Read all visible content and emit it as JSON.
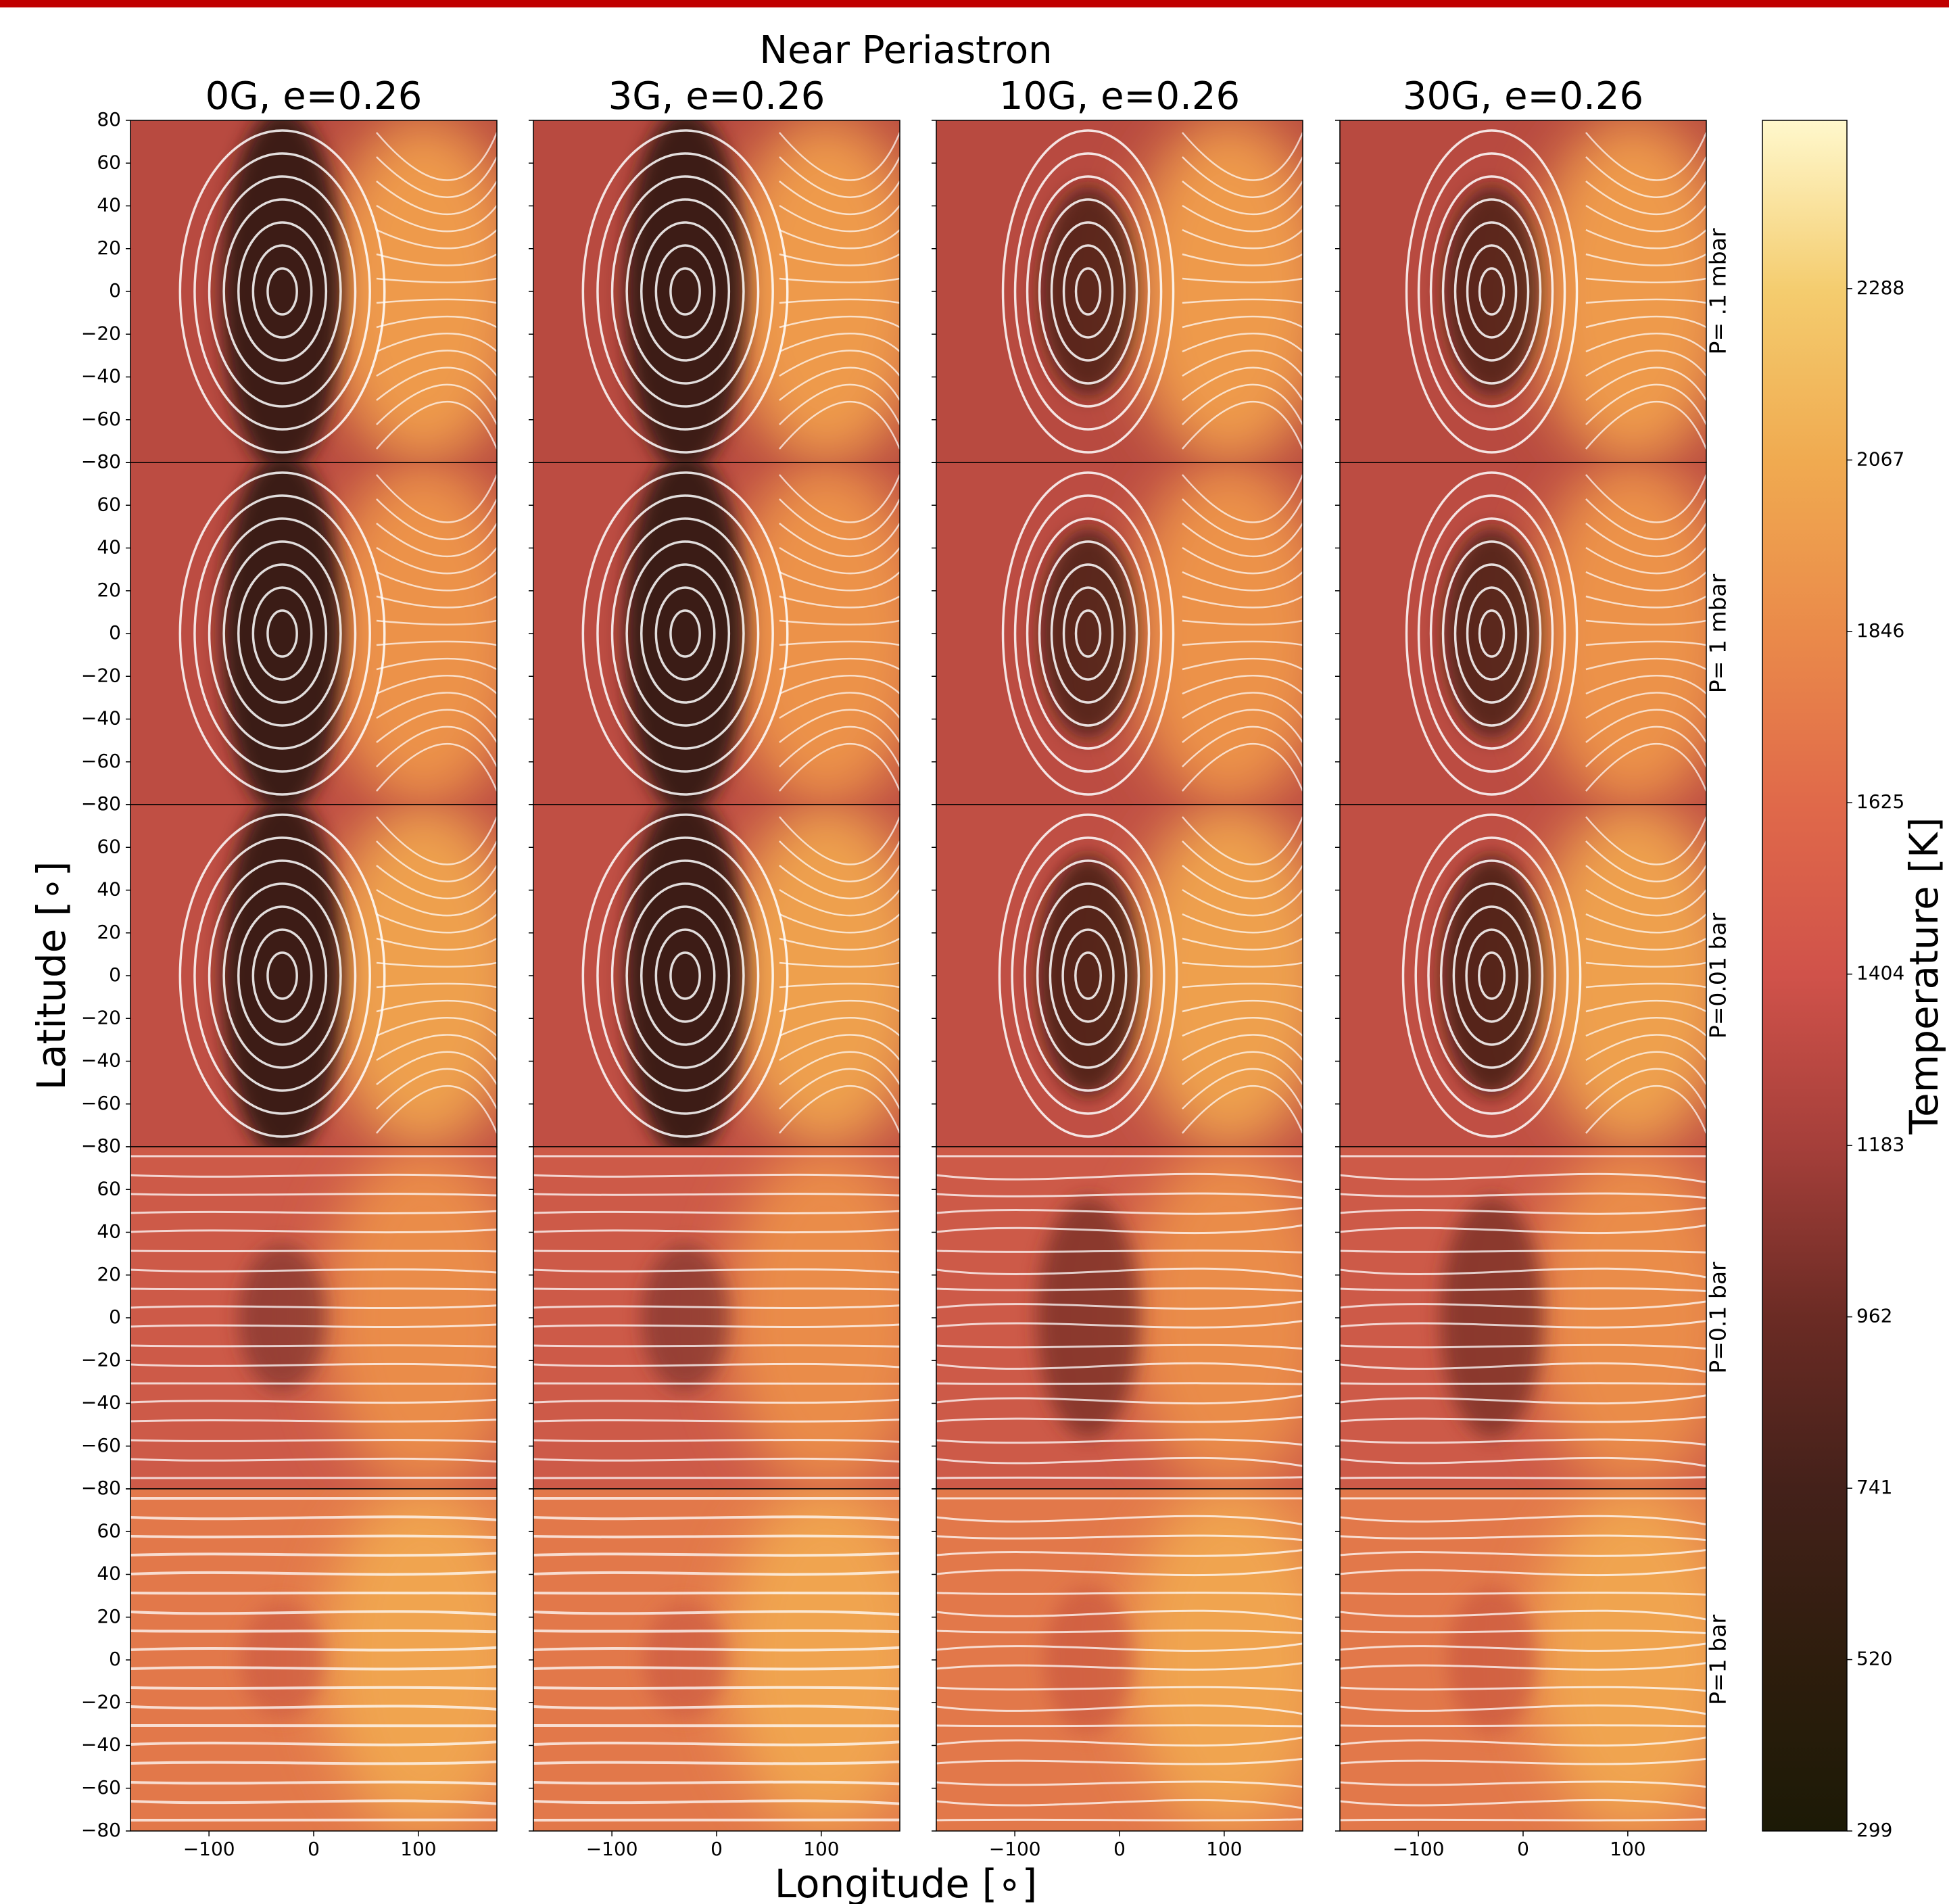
{
  "chart_data": {
    "type": "heatmap",
    "title": "Near Periastron",
    "columns": [
      "0G, e=0.26",
      "3G, e=0.26",
      "10G, e=0.26",
      "30G, e=0.26"
    ],
    "rows": [
      "P= .1 mbar",
      "P= 1 mbar",
      "P=0.01 bar",
      "P=0.1 bar",
      "P=1 bar"
    ],
    "x_label": "Longitude [∘]",
    "y_label": "Latitude [∘]",
    "xlim": [
      -175,
      175
    ],
    "xticks": [
      {
        "value": -100,
        "label": "−100"
      },
      0,
      100
    ],
    "ylim": [
      -80,
      80
    ],
    "yticks": [
      {
        "value": -80,
        "label": "−80"
      },
      {
        "value": -60,
        "label": "−60"
      },
      {
        "value": -40,
        "label": "−40"
      },
      {
        "value": -20,
        "label": "−20"
      },
      0,
      20,
      40,
      60,
      80
    ],
    "colorbar_label": "Temperature [K]",
    "clim": [
      299,
      2505
    ],
    "cticks": [
      299,
      520,
      741,
      962,
      1183,
      1404,
      1625,
      1846,
      2067,
      2288
    ],
    "colormap": [
      "#1c1a06",
      "#2e1d0d",
      "#44211a",
      "#6b2b24",
      "#a53f3a",
      "#d0524a",
      "#e0694a",
      "#ea8a4a",
      "#f0aa50",
      "#f4cc6e",
      "#fff8cc"
    ]
  }
}
